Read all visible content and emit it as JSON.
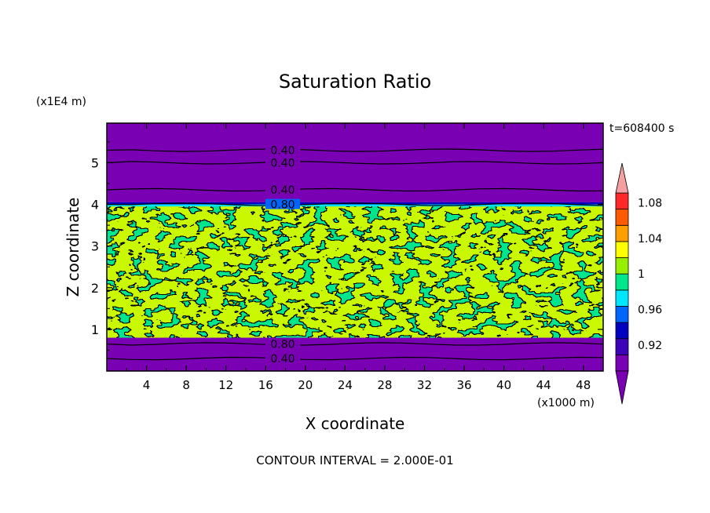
{
  "chart_data": {
    "type": "heatmap",
    "title": "Saturation Ratio",
    "xlabel": "X coordinate",
    "ylabel": "Z coordinate",
    "x_units": "(x1000 m)",
    "y_units": "(x1E4 m)",
    "xlim": [
      0,
      50
    ],
    "ylim": [
      0,
      5.95
    ],
    "x_ticks": [
      4,
      8,
      12,
      16,
      20,
      24,
      28,
      32,
      36,
      40,
      44,
      48
    ],
    "y_ticks": [
      1,
      2,
      3,
      4,
      5
    ],
    "x_tick_labels": [
      "4",
      "8",
      "12",
      "16",
      "20",
      "24",
      "28",
      "32",
      "36",
      "40",
      "44",
      "48"
    ],
    "y_tick_labels": [
      "1",
      "2",
      "3",
      "4",
      "5"
    ],
    "time_label": "t=608400 s",
    "footer": "CONTOUR INTERVAL = 2.000E-01",
    "colorbar": {
      "tick_labels": [
        "1.08",
        "1.04",
        "1",
        "0.96",
        "0.92"
      ],
      "tick_values": [
        1.08,
        1.04,
        1.0,
        0.96,
        0.92
      ],
      "levels": [
        0.9,
        0.92,
        0.94,
        0.96,
        0.98,
        1.0,
        1.02,
        1.04,
        1.06,
        1.08,
        1.1
      ],
      "colors": [
        "#7a00b4",
        "#3c00b8",
        "#0000c0",
        "#0064ff",
        "#00e6ff",
        "#00e68c",
        "#96f000",
        "#ffff00",
        "#ffa000",
        "#ff5a00",
        "#ff2828"
      ],
      "over_color": "#f5a0a0",
      "under_color": "#7a00b4"
    },
    "layers": [
      {
        "z_range": [
          0,
          0.8
        ],
        "class": "below 0.92"
      },
      {
        "z_range": [
          0.8,
          3.95
        ],
        "class": "mixed 0.96-1.02"
      },
      {
        "z_range": [
          3.95,
          4.05
        ],
        "class": "mixed 0.92-0.98"
      },
      {
        "z_range": [
          4.05,
          5.95
        ],
        "class": "below 0.92"
      }
    ],
    "contour_lines": [
      {
        "level_label": "0.40",
        "z": 0.3
      },
      {
        "level_label": "0.80",
        "z": 0.65
      },
      {
        "level_label": "0.80",
        "z": 4.0
      },
      {
        "level_label": "0.40",
        "z": 4.35
      },
      {
        "level_label": "0.40",
        "z": 5.0
      },
      {
        "level_label": "0.40",
        "z": 5.3
      }
    ],
    "grid": false
  }
}
